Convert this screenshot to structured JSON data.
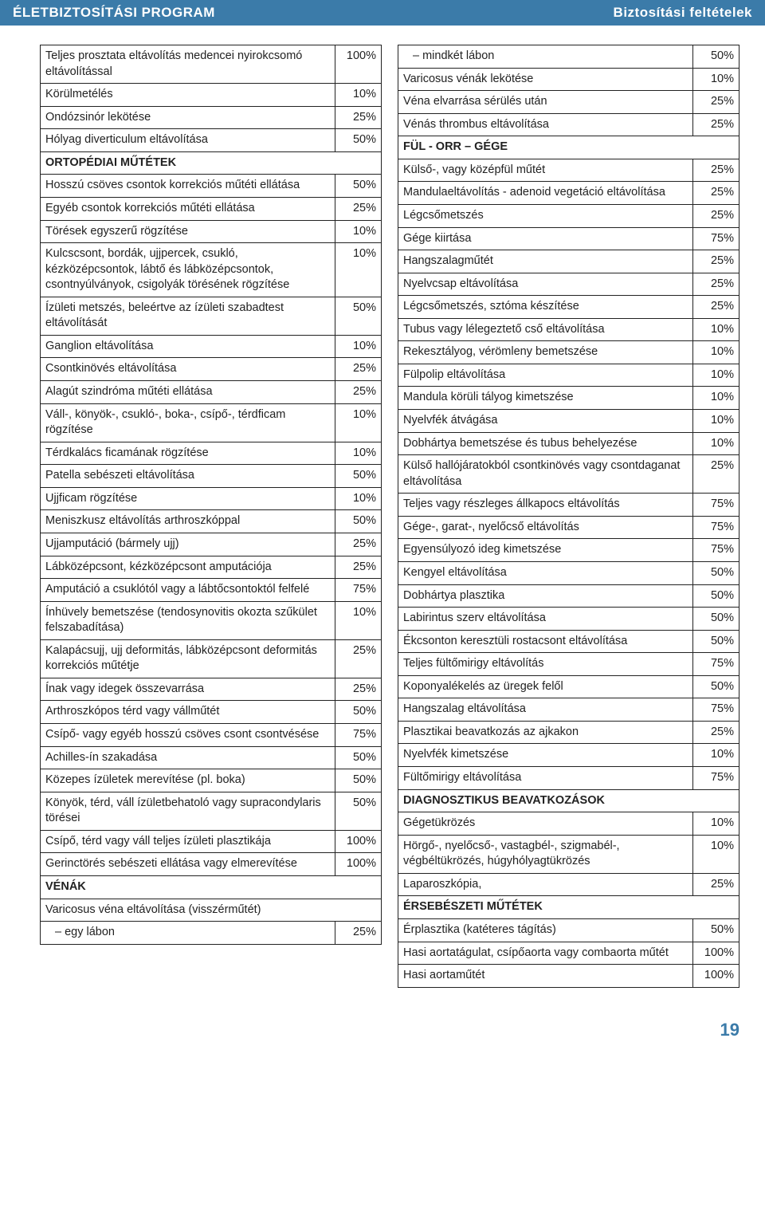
{
  "header": {
    "left": "ÉLETBIZTOSÍTÁSI PROGRAM",
    "right": "Biztosítási feltételek"
  },
  "pageNumber": "19",
  "left": [
    {
      "type": "row",
      "label": "Teljes prosztata eltávolítás medencei nyirokcsomó eltávolítással",
      "val": "100%"
    },
    {
      "type": "row",
      "label": "Körülmetélés",
      "val": "10%"
    },
    {
      "type": "row",
      "label": "Ondózsinór lekötése",
      "val": "25%"
    },
    {
      "type": "row",
      "label": "Hólyag diverticulum eltávolítása",
      "val": "50%"
    },
    {
      "type": "section",
      "label": "ORTOPÉDIAI MŰTÉTEK"
    },
    {
      "type": "row",
      "label": "Hosszú csöves csontok korrekciós műtéti ellátása",
      "val": "50%"
    },
    {
      "type": "row",
      "label": "Egyéb csontok korrekciós műtéti ellátása",
      "val": "25%"
    },
    {
      "type": "row",
      "label": "Törések egyszerű rögzítése",
      "val": "10%"
    },
    {
      "type": "row",
      "label": "Kulcscsont, bordák, ujjpercek, csukló, kézközépcsontok, lábtő és lábközépcsontok, csontnyúlványok, csigolyák törésének rögzítése",
      "val": "10%"
    },
    {
      "type": "row",
      "label": "Ízületi metszés, beleértve az ízületi szabadtest eltávolítását",
      "val": "50%"
    },
    {
      "type": "row",
      "label": "Ganglion eltávolítása",
      "val": "10%"
    },
    {
      "type": "row",
      "label": "Csontkinövés eltávolítása",
      "val": "25%"
    },
    {
      "type": "row",
      "label": "Alagút szindróma műtéti ellátása",
      "val": "25%"
    },
    {
      "type": "row",
      "label": "Váll-, könyök-, csukló-, boka-, csípő-, térdficam rögzítése",
      "val": "10%"
    },
    {
      "type": "row",
      "label": "Térdkalács ficamának rögzítése",
      "val": "10%"
    },
    {
      "type": "row",
      "label": "Patella sebészeti eltávolítása",
      "val": "50%"
    },
    {
      "type": "row",
      "label": "Ujjficam rögzítése",
      "val": "10%"
    },
    {
      "type": "row",
      "label": "Meniszkusz eltávolítás arthroszkóppal",
      "val": "50%"
    },
    {
      "type": "row",
      "label": "Ujjamputáció (bármely ujj)",
      "val": "25%"
    },
    {
      "type": "row",
      "label": "Lábközépcsont, kézközépcsont amputációja",
      "val": "25%"
    },
    {
      "type": "row",
      "label": "Amputáció a csuklótól vagy a lábtőcsontoktól felfelé",
      "val": "75%"
    },
    {
      "type": "row",
      "label": "Ínhüvely bemetszése (tendosynovitis okozta szűkület felszabadítása)",
      "val": "10%"
    },
    {
      "type": "row",
      "label": "Kalapácsujj, ujj deformitás, lábközépcsont deformitás korrekciós műtétje",
      "val": "25%"
    },
    {
      "type": "row",
      "label": "Ínak vagy idegek összevarrása",
      "val": "25%"
    },
    {
      "type": "row",
      "label": "Arthroszkópos térd vagy vállműtét",
      "val": "50%"
    },
    {
      "type": "row",
      "label": "Csípő- vagy egyéb hosszú csöves csont csontvésése",
      "val": "75%"
    },
    {
      "type": "row",
      "label": "Achilles-ín szakadása",
      "val": "50%"
    },
    {
      "type": "row",
      "label": "Közepes ízületek merevítése (pl. boka)",
      "val": "50%"
    },
    {
      "type": "row",
      "label": "Könyök, térd, váll ízületbehatoló vagy supracondylaris törései",
      "val": "50%"
    },
    {
      "type": "row",
      "label": "Csípő, térd vagy váll teljes ízületi plasztikája",
      "val": "100%"
    },
    {
      "type": "row",
      "label": "Gerinctörés sebészeti ellátása vagy elmerevítése",
      "val": "100%"
    },
    {
      "type": "section",
      "label": "VÉNÁK"
    },
    {
      "type": "span",
      "label": "Varicosus véna eltávolítása (visszérműtét)"
    },
    {
      "type": "indent",
      "label": "egy lábon",
      "val": "25%"
    }
  ],
  "right": [
    {
      "type": "indent",
      "label": "mindkét lábon",
      "val": "50%"
    },
    {
      "type": "row",
      "label": "Varicosus vénák lekötése",
      "val": "10%"
    },
    {
      "type": "row",
      "label": "Véna elvarrása sérülés után",
      "val": "25%"
    },
    {
      "type": "row",
      "label": "Vénás thrombus eltávolítása",
      "val": "25%"
    },
    {
      "type": "section",
      "label": "FÜL - ORR – GÉGE"
    },
    {
      "type": "row",
      "label": "Külső-, vagy középfül műtét",
      "val": "25%"
    },
    {
      "type": "row",
      "label": "Mandulaeltávolítás - adenoid vegetáció eltávolítása",
      "val": "25%"
    },
    {
      "type": "row",
      "label": "Légcsőmetszés",
      "val": "25%"
    },
    {
      "type": "row",
      "label": "Gége kiirtása",
      "val": "75%"
    },
    {
      "type": "row",
      "label": "Hangszalagműtét",
      "val": "25%"
    },
    {
      "type": "row",
      "label": "Nyelvcsap eltávolítása",
      "val": "25%"
    },
    {
      "type": "row",
      "label": "Légcsőmetszés, sztóma készítése",
      "val": "25%"
    },
    {
      "type": "row",
      "label": "Tubus vagy lélegeztető cső eltávolítása",
      "val": "10%"
    },
    {
      "type": "row",
      "label": "Rekesztályog, vérömleny bemetszése",
      "val": "10%"
    },
    {
      "type": "row",
      "label": "Fülpolip eltávolítása",
      "val": "10%"
    },
    {
      "type": "row",
      "label": "Mandula körüli tályog kimetszése",
      "val": "10%"
    },
    {
      "type": "row",
      "label": "Nyelvfék átvágása",
      "val": "10%"
    },
    {
      "type": "row",
      "label": "Dobhártya bemetszése és tubus behelyezése",
      "val": "10%"
    },
    {
      "type": "row",
      "label": "Külső hallójáratokból csontkinövés vagy csontdaganat eltávolítása",
      "val": "25%"
    },
    {
      "type": "row",
      "label": "Teljes vagy részleges állkapocs eltávolítás",
      "val": "75%"
    },
    {
      "type": "row",
      "label": "Gége-, garat-, nyelőcső eltávolítás",
      "val": "75%"
    },
    {
      "type": "row",
      "label": "Egyensúlyozó ideg kimetszése",
      "val": "75%"
    },
    {
      "type": "row",
      "label": "Kengyel eltávolítása",
      "val": "50%"
    },
    {
      "type": "row",
      "label": "Dobhártya plasztika",
      "val": "50%"
    },
    {
      "type": "row",
      "label": "Labirintus szerv eltávolítása",
      "val": "50%"
    },
    {
      "type": "row",
      "label": "Ékcsonton keresztüli rostacsont eltávolítása",
      "val": "50%"
    },
    {
      "type": "row",
      "label": "Teljes fültőmirigy eltávolítás",
      "val": "75%"
    },
    {
      "type": "row",
      "label": "Koponyalékelés az üregek felől",
      "val": "50%"
    },
    {
      "type": "row",
      "label": "Hangszalag eltávolítása",
      "val": "75%"
    },
    {
      "type": "row",
      "label": "Plasztikai beavatkozás az ajkakon",
      "val": "25%"
    },
    {
      "type": "row",
      "label": "Nyelvfék kimetszése",
      "val": "10%"
    },
    {
      "type": "row",
      "label": "Fültőmirigy eltávolítása",
      "val": "75%"
    },
    {
      "type": "section",
      "label": "DIAGNOSZTIKUS BEAVATKOZÁSOK"
    },
    {
      "type": "row",
      "label": "Gégetükrözés",
      "val": "10%"
    },
    {
      "type": "row",
      "label": "Hörgő-, nyelőcső-, vastagbél-, szigmabél-, végbéltükrözés, húgyhólyagtükrözés",
      "val": "10%"
    },
    {
      "type": "row",
      "label": "Laparoszkópia,",
      "val": "25%"
    },
    {
      "type": "section",
      "label": "ÉRSEBÉSZETI MŰTÉTEK"
    },
    {
      "type": "row",
      "label": "Érplasztika (katéteres tágítás)",
      "val": "50%"
    },
    {
      "type": "row",
      "label": "Hasi aortatágulat, csípőaorta vagy combaorta műtét",
      "val": "100%"
    },
    {
      "type": "row",
      "label": "Hasi aortaműtét",
      "val": "100%"
    }
  ]
}
